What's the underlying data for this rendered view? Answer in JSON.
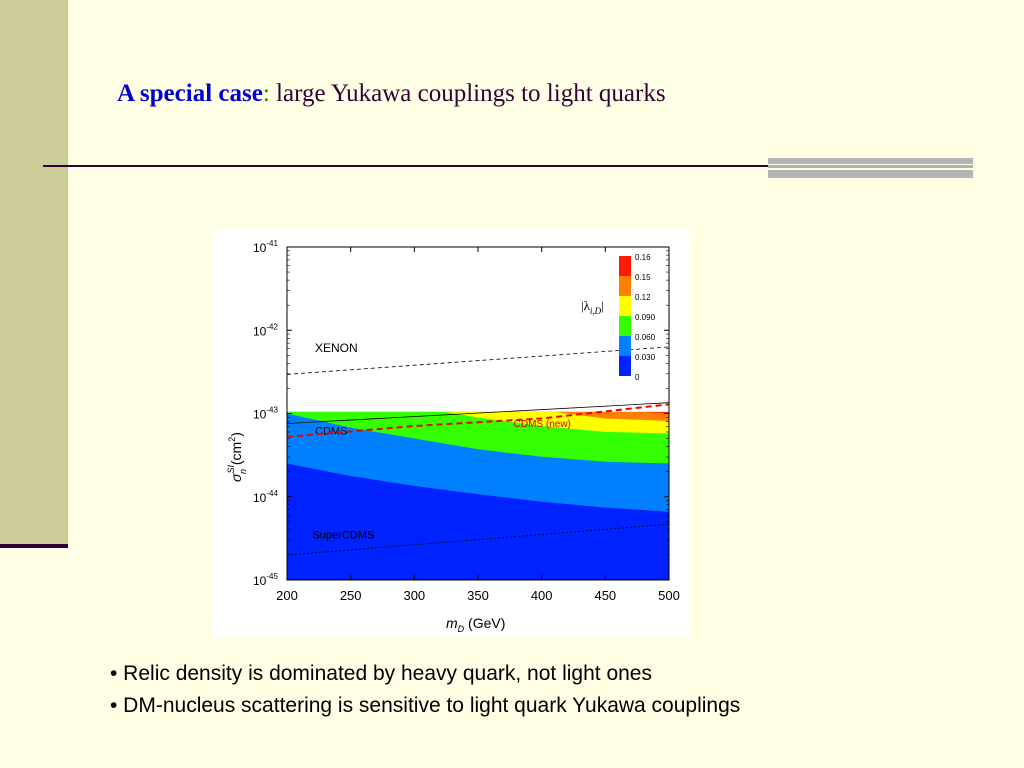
{
  "slide": {
    "title_highlight": "A special case",
    "title_colon": ":",
    "title_rest": " large Yukawa couplings to light quarks",
    "bullets": [
      "• Relic density is dominated by heavy quark, not light ones",
      "• DM-nucleus scattering is sensitive to light quark Yukawa couplings"
    ]
  },
  "colors": {
    "background": "#ffffe5",
    "left_bar": "#cccc99",
    "title_highlight": "#0000cc",
    "title_colon": "#009900",
    "title_text": "#330033",
    "rule": "#330033"
  },
  "chart_data": {
    "type": "area",
    "x_range": [
      200,
      500
    ],
    "y_log_range": [
      -45,
      -41
    ],
    "x_ticks": [
      "200",
      "250",
      "300",
      "350",
      "400",
      "450",
      "500"
    ],
    "x_tick_values": [
      200,
      250,
      300,
      350,
      400,
      450,
      500
    ],
    "y_tick_bases": [
      "10",
      "10",
      "10",
      "10",
      "10"
    ],
    "y_tick_exps": [
      "-45",
      "-44",
      "-43",
      "-42",
      "-41"
    ],
    "y_tick_values": [
      -45,
      -44,
      -43,
      -42,
      -41
    ],
    "ylabel_main": "σ",
    "ylabel_sup": "SI",
    "ylabel_sub": "n",
    "ylabel_units": " (cm",
    "ylabel_units_sup": "2",
    "ylabel_close": ")",
    "xlabel_main": "m",
    "xlabel_sub": "D",
    "xlabel_units": " (GeV)",
    "legend_title_open": "|λ",
    "legend_title_sub": "i,D",
    "legend_title_close": "|",
    "colorbar": [
      {
        "label": "0.16",
        "color": "#ff1a00"
      },
      {
        "label": "0.15",
        "color": "#ff8000"
      },
      {
        "label": "0.12",
        "color": "#ffff00"
      },
      {
        "label": "0.090",
        "color": "#33ff00"
      },
      {
        "label": "0.060",
        "color": "#0080ff"
      },
      {
        "label": "0.030",
        "color": "#0022ff"
      },
      {
        "label": "0",
        "color": null
      }
    ],
    "regions": [
      {
        "name": "0 - 0.030",
        "color": "#0022ff",
        "upper": [
          [
            200,
            -43.6
          ],
          [
            250,
            -43.75
          ],
          [
            300,
            -43.87
          ],
          [
            350,
            -43.97
          ],
          [
            400,
            -44.06
          ],
          [
            450,
            -44.13
          ],
          [
            500,
            -44.18
          ]
        ]
      },
      {
        "name": "0.030 - 0.060",
        "color": "#0080ff",
        "upper": [
          [
            200,
            -43.0
          ],
          [
            250,
            -43.17
          ],
          [
            300,
            -43.3
          ],
          [
            350,
            -43.43
          ],
          [
            400,
            -43.52
          ],
          [
            450,
            -43.58
          ],
          [
            500,
            -43.6
          ]
        ]
      },
      {
        "name": "0.060 - 0.090",
        "color": "#33ff00",
        "upper": [
          [
            200,
            -42.98
          ],
          [
            250,
            -42.98
          ],
          [
            300,
            -42.98
          ],
          [
            350,
            -42.99
          ],
          [
            400,
            -43.09
          ],
          [
            450,
            -43.19
          ],
          [
            500,
            -43.24
          ]
        ]
      },
      {
        "name": "0.090 - 0.12",
        "color": "#ffff00",
        "upper": [
          [
            350,
            -42.98
          ],
          [
            400,
            -42.98
          ],
          [
            450,
            -42.98
          ],
          [
            500,
            -42.98
          ]
        ]
      },
      {
        "name": "0.12 - 0.15",
        "color": "#ff8000",
        "upper": [
          [
            420,
            -42.98
          ],
          [
            450,
            -42.98
          ],
          [
            500,
            -42.98
          ]
        ]
      },
      {
        "name": "0.15 - 0.16",
        "color": "#ff1a00",
        "upper": [
          [
            490,
            -42.98
          ],
          [
            500,
            -42.98
          ]
        ]
      }
    ],
    "boundaries": {
      "blue_upper": [
        [
          200,
          -43.6
        ],
        [
          250,
          -43.75
        ],
        [
          300,
          -43.87
        ],
        [
          350,
          -43.97
        ],
        [
          400,
          -44.06
        ],
        [
          450,
          -44.13
        ],
        [
          500,
          -44.18
        ]
      ],
      "lightblue_upper": [
        [
          200,
          -43.0
        ],
        [
          250,
          -43.17
        ],
        [
          300,
          -43.3
        ],
        [
          350,
          -43.43
        ],
        [
          400,
          -43.52
        ],
        [
          450,
          -43.58
        ],
        [
          500,
          -43.6
        ]
      ],
      "green_upper": [
        [
          325,
          -42.98
        ],
        [
          350,
          -43.05
        ],
        [
          400,
          -43.15
        ],
        [
          450,
          -43.22
        ],
        [
          500,
          -43.24
        ]
      ],
      "yellow_upper": [
        [
          410,
          -42.98
        ],
        [
          450,
          -43.06
        ],
        [
          500,
          -43.09
        ]
      ],
      "orange_upper": [
        [
          480,
          -42.98
        ],
        [
          500,
          -43.0
        ]
      ],
      "region_top": -42.98
    },
    "lines": [
      {
        "label": "XENON",
        "style": "dashed",
        "color": "#000000",
        "points": [
          [
            200,
            -42.53
          ],
          [
            500,
            -42.2
          ]
        ],
        "label_at": [
          222,
          -42.26
        ]
      },
      {
        "label": "CDMS",
        "style": "solid",
        "color": "#000000",
        "points": [
          [
            200,
            -43.12
          ],
          [
            500,
            -42.87
          ]
        ],
        "label_at": [
          222,
          -43.25
        ]
      },
      {
        "label": "CDMS (new)",
        "style": "dashed",
        "color": "#ee0000",
        "points": [
          [
            200,
            -43.28
          ],
          [
            300,
            -43.15
          ],
          [
            400,
            -43.06
          ],
          [
            500,
            -42.89
          ]
        ],
        "label_at": [
          378,
          -43.16
        ]
      },
      {
        "label": "SuperCDMS",
        "style": "dotted",
        "color": "#000000",
        "points": [
          [
            200,
            -44.7
          ],
          [
            500,
            -44.33
          ]
        ],
        "label_at": [
          220,
          -44.5
        ]
      }
    ]
  }
}
